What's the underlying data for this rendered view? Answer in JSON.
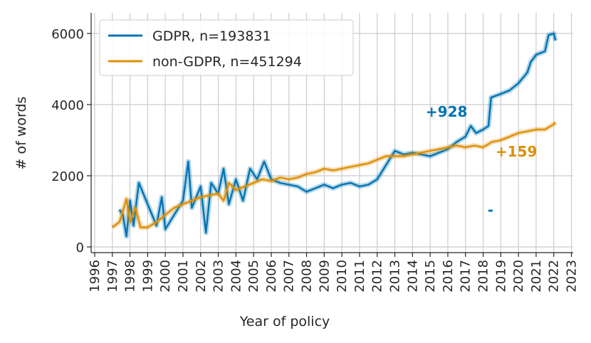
{
  "chart_data": {
    "type": "line",
    "xlabel": "Year of policy",
    "ylabel": "# of words",
    "xlim": [
      1995.8,
      2023.1
    ],
    "ylim": [
      -160,
      6580
    ],
    "xticks": [
      1996,
      1997,
      1998,
      1999,
      2000,
      2001,
      2002,
      2003,
      2004,
      2005,
      2006,
      2007,
      2008,
      2009,
      2010,
      2011,
      2012,
      2013,
      2014,
      2015,
      2016,
      2017,
      2018,
      2019,
      2020,
      2021,
      2022,
      2023
    ],
    "yticks": [
      0,
      2000,
      4000,
      6000
    ],
    "grid": true,
    "legend": "upper left",
    "series": [
      {
        "name": "GDPR, n=193831",
        "color": "#0173b2",
        "x": [
          1997.4,
          1997.6,
          1997.8,
          1998.0,
          1998.2,
          1998.5,
          1999.0,
          1999.5,
          1999.8,
          2000.0,
          2000.5,
          2001.0,
          2001.3,
          2001.5,
          2002.0,
          2002.3,
          2002.6,
          2003.0,
          2003.3,
          2003.6,
          2004.0,
          2004.4,
          2004.8,
          2005.2,
          2005.6,
          2006.0,
          2006.5,
          2007.0,
          2007.5,
          2008.0,
          2008.5,
          2009.0,
          2009.5,
          2010.0,
          2010.5,
          2011.0,
          2011.5,
          2012.0,
          2012.5,
          2013.0,
          2013.5,
          2014.0,
          2014.5,
          2015.0,
          2015.5,
          2016.0,
          2016.5,
          2017.0,
          2017.3,
          2017.6,
          2018.0,
          2018.3,
          2018.45,
          2019.0,
          2019.5,
          2020.0,
          2020.5,
          2020.7,
          2021.0,
          2021.5,
          2021.7,
          2022.0,
          2022.1
        ],
        "values": [
          1050,
          900,
          300,
          1300,
          600,
          1800,
          1200,
          600,
          1400,
          500,
          900,
          1300,
          2400,
          1100,
          1700,
          400,
          1800,
          1500,
          2200,
          1200,
          1900,
          1300,
          2200,
          1900,
          2400,
          1900,
          1800,
          1750,
          1700,
          1550,
          1650,
          1750,
          1650,
          1750,
          1800,
          1700,
          1750,
          1900,
          2300,
          2700,
          2600,
          2650,
          2600,
          2550,
          2650,
          2750,
          2950,
          3100,
          3400,
          3200,
          3300,
          3400,
          4200,
          4300,
          4400,
          4600,
          4900,
          5200,
          5400,
          5500,
          5950,
          6000,
          5800
        ]
      },
      {
        "name": "non-GDPR, n=451294",
        "color": "#de8f05",
        "x": [
          1997.0,
          1997.4,
          1997.6,
          1997.8,
          1998.0,
          1998.3,
          1998.6,
          1999.0,
          1999.5,
          2000.0,
          2000.5,
          2001.0,
          2001.5,
          2002.0,
          2002.5,
          2003.0,
          2003.3,
          2003.6,
          2004.0,
          2004.5,
          2005.0,
          2005.5,
          2006.0,
          2006.5,
          2007.0,
          2007.5,
          2008.0,
          2008.5,
          2009.0,
          2009.5,
          2010.0,
          2010.5,
          2011.0,
          2011.5,
          2012.0,
          2012.5,
          2013.0,
          2013.5,
          2014.0,
          2014.5,
          2015.0,
          2015.5,
          2016.0,
          2016.5,
          2017.0,
          2017.5,
          2018.0,
          2018.5,
          2019.0,
          2019.5,
          2020.0,
          2020.5,
          2021.0,
          2021.5,
          2022.0,
          2022.1
        ],
        "values": [
          550,
          700,
          1000,
          1350,
          700,
          1100,
          550,
          550,
          700,
          900,
          1100,
          1200,
          1300,
          1400,
          1450,
          1500,
          1300,
          1800,
          1600,
          1700,
          1800,
          1900,
          1850,
          1950,
          1900,
          1950,
          2050,
          2100,
          2200,
          2150,
          2200,
          2250,
          2300,
          2350,
          2450,
          2550,
          2550,
          2550,
          2600,
          2650,
          2700,
          2750,
          2800,
          2850,
          2800,
          2850,
          2800,
          2950,
          3000,
          3100,
          3200,
          3250,
          3300,
          3300,
          3450,
          3500
        ]
      }
    ],
    "annotations": [
      {
        "text": "+928",
        "x": 2014.75,
        "y": 3800,
        "color": "#0173b2"
      },
      {
        "text": "+159",
        "x": 2018.7,
        "y": 2680,
        "color": "#de8f05"
      },
      {
        "text": "-",
        "x": 2018.25,
        "y": 1040,
        "color": "#0173b2"
      }
    ]
  }
}
